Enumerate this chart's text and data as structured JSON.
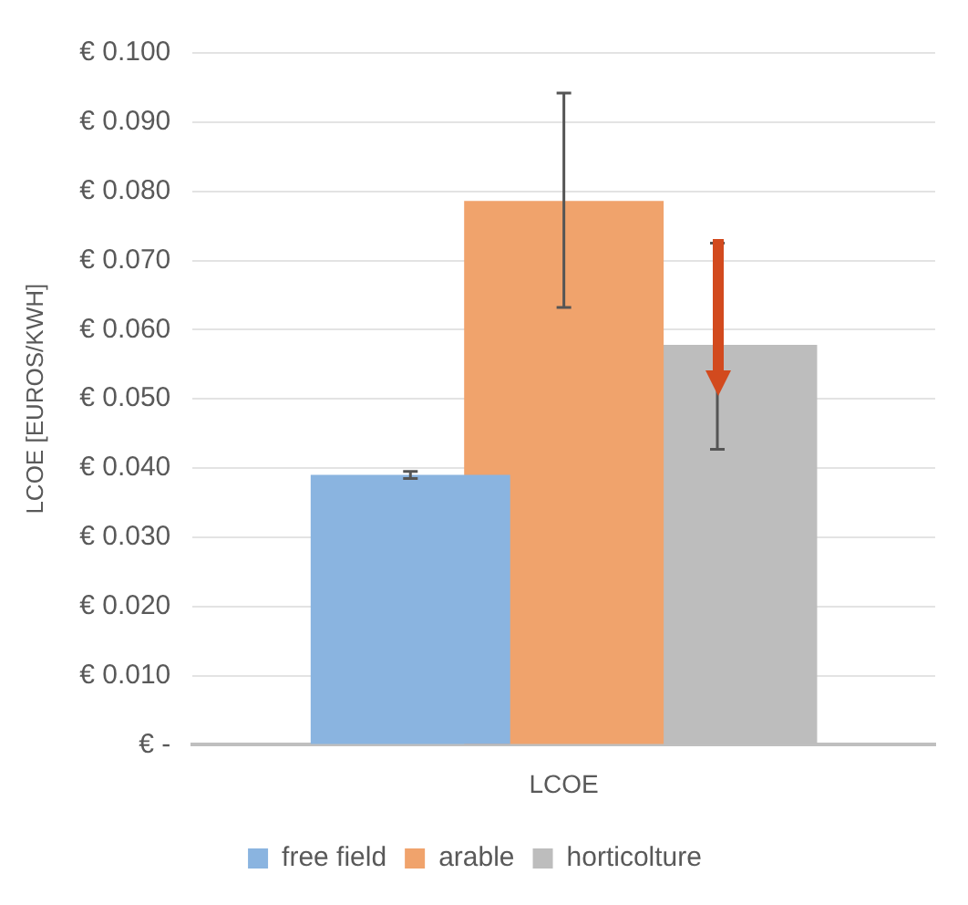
{
  "chart_data": {
    "type": "bar",
    "ylabel": "LCOE [EUROS/KWH]",
    "categories": [
      "LCOE"
    ],
    "series": [
      {
        "name": "free field",
        "color": "#8ab4e0",
        "values": [
          0.039
        ],
        "errors": [
          0.0005
        ]
      },
      {
        "name": "arable",
        "color": "#f0a36c",
        "values": [
          0.0786
        ],
        "errors": [
          [
            0.0632,
            0.0942
          ]
        ]
      },
      {
        "name": "horticolture",
        "color": "#bdbdbd",
        "values": [
          0.0578
        ],
        "errors": [
          [
            0.0427,
            0.0725
          ]
        ]
      }
    ],
    "ylim": [
      0,
      0.1
    ],
    "yticks": [
      {
        "value": 0,
        "label": "€ -"
      },
      {
        "value": 0.01,
        "label": "€ 0.010"
      },
      {
        "value": 0.02,
        "label": "€ 0.020"
      },
      {
        "value": 0.03,
        "label": "€ 0.030"
      },
      {
        "value": 0.04,
        "label": "€ 0.040"
      },
      {
        "value": 0.05,
        "label": "€ 0.050"
      },
      {
        "value": 0.06,
        "label": "€ 0.060"
      },
      {
        "value": 0.07,
        "label": "€ 0.070"
      },
      {
        "value": 0.08,
        "label": "€ 0.080"
      },
      {
        "value": 0.09,
        "label": "€ 0.090"
      },
      {
        "value": 0.1,
        "label": "€ 0.100"
      }
    ],
    "grid": "y",
    "legend": "bottom"
  }
}
